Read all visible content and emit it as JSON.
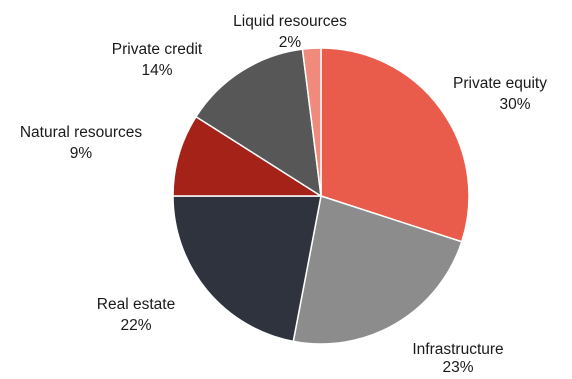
{
  "chart_data": {
    "type": "pie",
    "title": "",
    "slices": [
      {
        "label": "Private equity",
        "value": 30,
        "value_label": "30%",
        "color": "#e95c4b"
      },
      {
        "label": "Infrastructure",
        "value": 23,
        "value_label": "23%",
        "color": "#8c8c8c"
      },
      {
        "label": "Real estate",
        "value": 22,
        "value_label": "22%",
        "color": "#2e333d"
      },
      {
        "label": "Natural resources",
        "value": 9,
        "value_label": "9%",
        "color": "#a52218"
      },
      {
        "label": "Private credit",
        "value": 14,
        "value_label": "14%",
        "color": "#575757"
      },
      {
        "label": "Liquid resources",
        "value": 2,
        "value_label": "2%",
        "color": "#ef8a7c"
      }
    ]
  }
}
